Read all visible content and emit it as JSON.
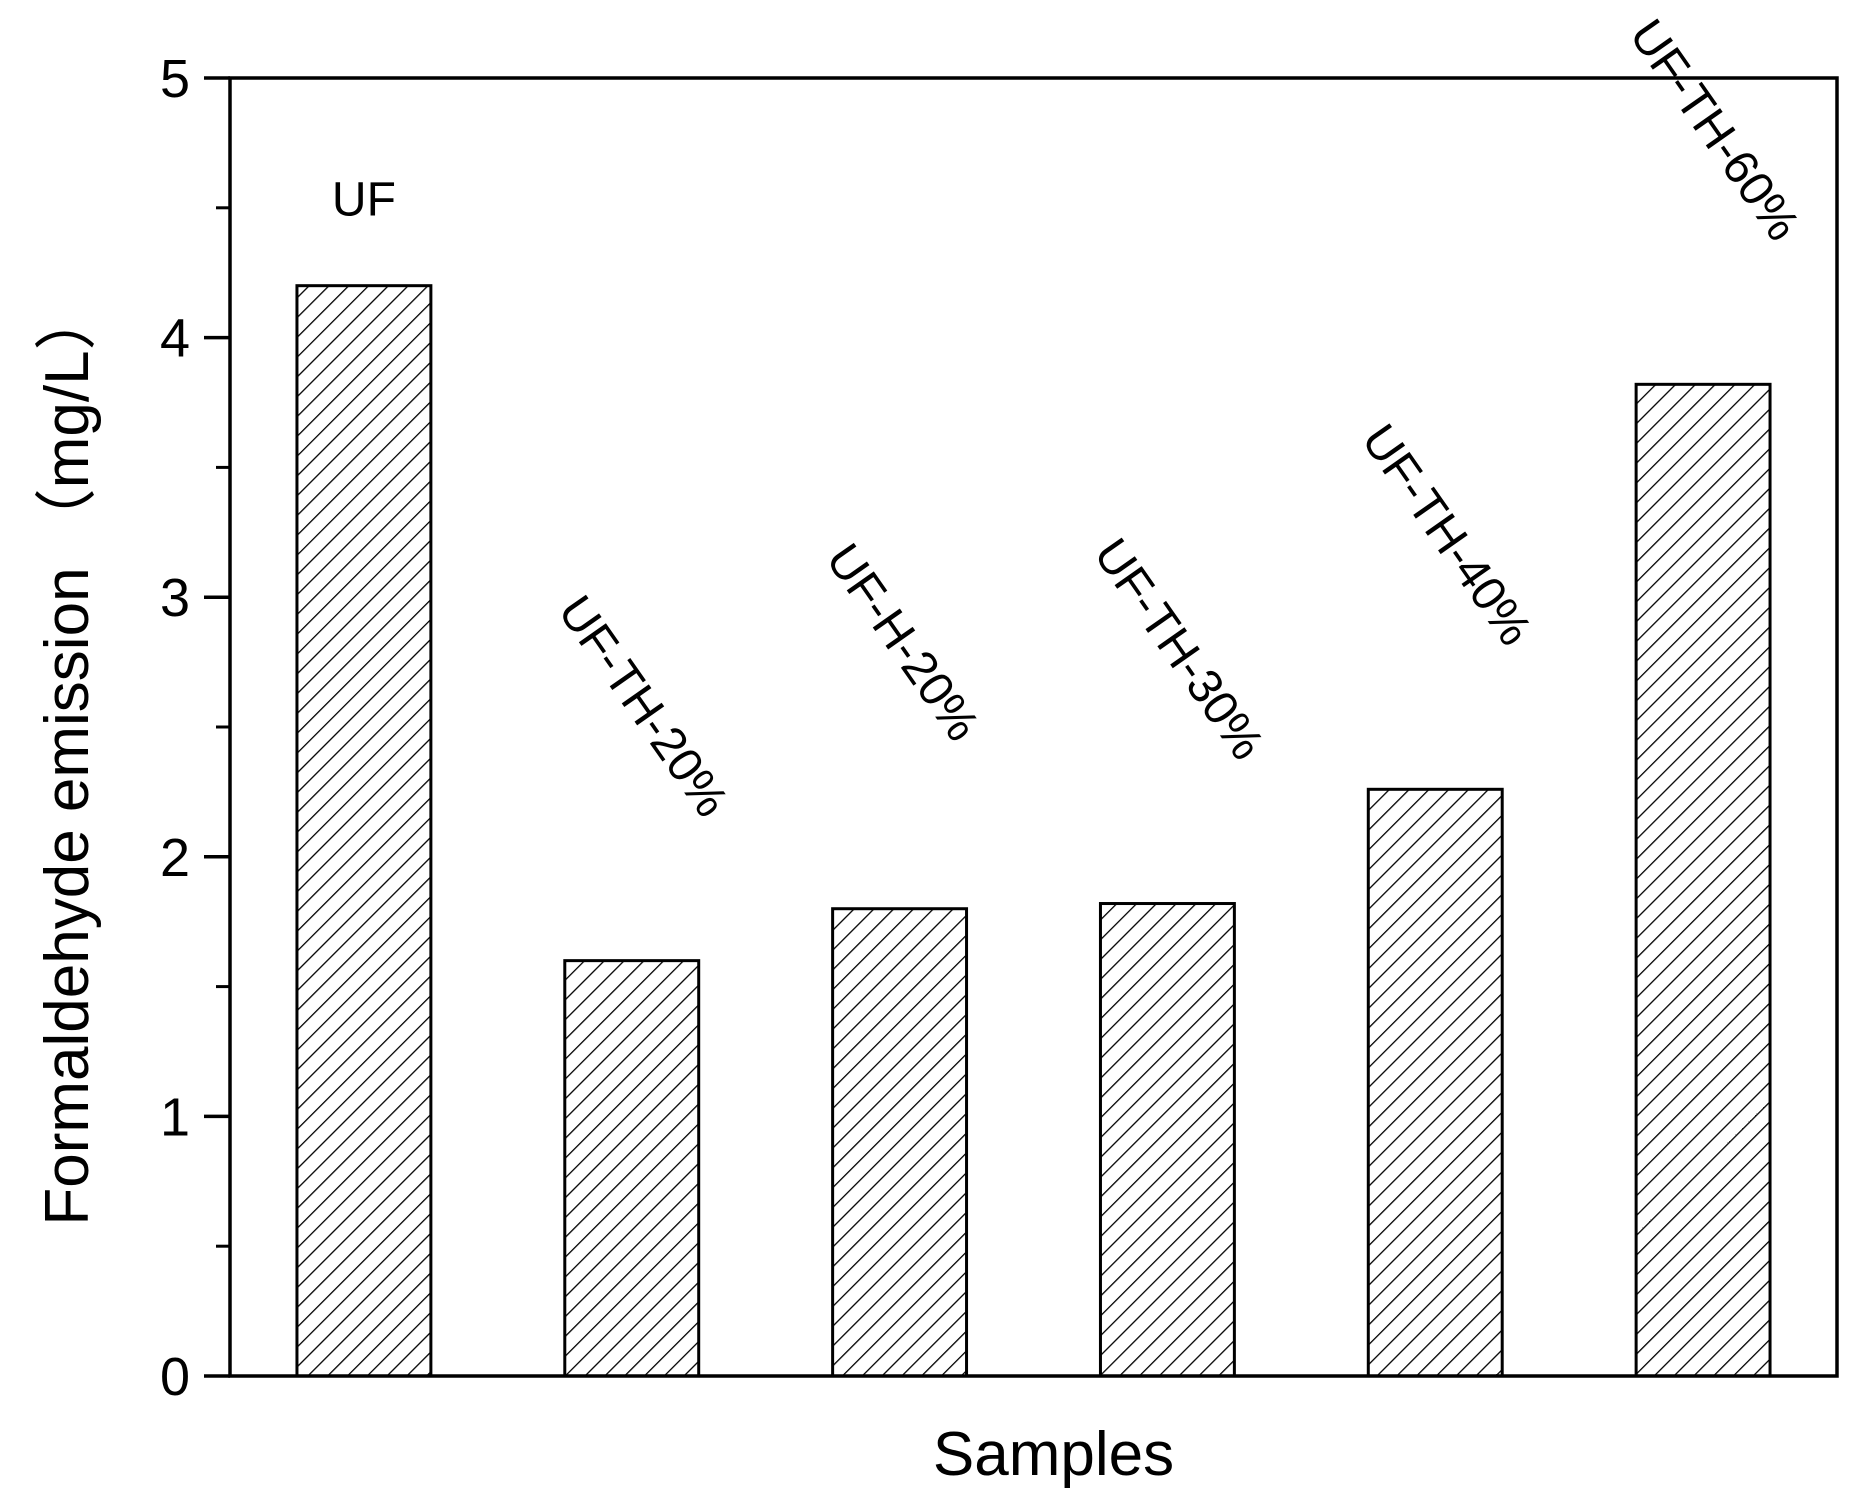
{
  "chart_data": {
    "type": "bar",
    "categories": [
      "UF",
      "UF-TH-20%",
      "UF-H-20%",
      "UF-TH-30%",
      "UF-TH-40%",
      "UF-TH-60%"
    ],
    "values": [
      4.2,
      1.6,
      1.8,
      1.82,
      2.26,
      3.82
    ],
    "xlabel": "Samples",
    "ylabel": "Formaldehyde emission （mg/L）",
    "ylim": [
      0,
      5
    ],
    "yticks": [
      0,
      1,
      2,
      3,
      4,
      5
    ],
    "grid": false,
    "legend": "none",
    "bar_fill": "diagonal hatch",
    "colors": {
      "bar_stroke": "#000000",
      "hatch": "#000000",
      "background": "#ffffff"
    }
  }
}
